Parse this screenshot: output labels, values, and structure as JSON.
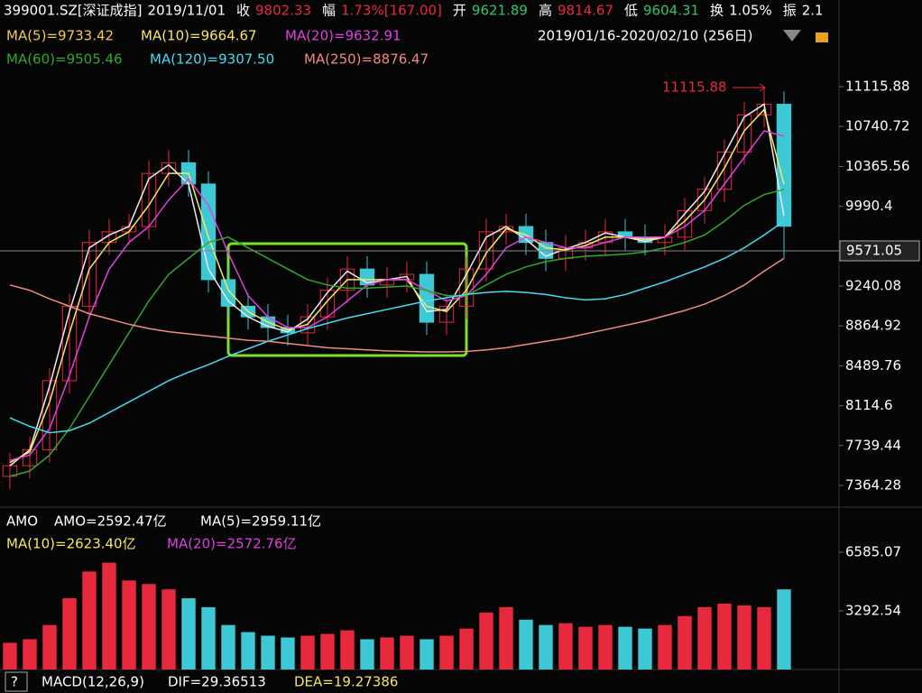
{
  "header": [
    {
      "label": "399001.SZ[深证成指]",
      "value": "2019/11/01"
    },
    {
      "label": "收",
      "value": "9802.33"
    },
    {
      "label": "幅",
      "value": "1.73%[167.00]"
    },
    {
      "label": "开",
      "value": "9621.89"
    },
    {
      "label": "高",
      "value": "9814.67"
    },
    {
      "label": "低",
      "value": "9604.31"
    },
    {
      "label": "换",
      "value": "1.05%"
    },
    {
      "label": "振",
      "value": "2.1"
    }
  ],
  "date_range": "2019/01/16-2020/02/10 (256日)",
  "macd": {
    "title": "MACD(12,26,9)",
    "dif": "DIF=29.36513",
    "dea": "DEA=19.27386",
    "help": "?"
  },
  "chart_data": [
    {
      "type": "candlestick",
      "open": [
        7450,
        7550,
        7700,
        8350,
        9050,
        9650,
        9750,
        9800,
        10300,
        10400,
        10200,
        9300,
        9050,
        8950,
        8850,
        8800,
        8950,
        9200,
        9400,
        9250,
        9300,
        9350,
        8900,
        9050,
        9400,
        9750,
        9800,
        9650,
        9500,
        9600,
        9650,
        9750,
        9700,
        9650,
        9700,
        9950,
        10150,
        10500,
        10850,
        10950
      ],
      "high": [
        7670,
        7820,
        8470,
        9170,
        9770,
        9870,
        9920,
        10420,
        10520,
        10520,
        10320,
        9420,
        9170,
        9070,
        8970,
        9070,
        9320,
        9520,
        9520,
        9420,
        9470,
        9470,
        9170,
        9520,
        9870,
        9920,
        9920,
        9770,
        9720,
        9770,
        9870,
        9870,
        9820,
        9820,
        10070,
        10270,
        10620,
        10970,
        11115.88,
        11070
      ],
      "low": [
        7330,
        7430,
        7580,
        8230,
        8930,
        9530,
        9630,
        9680,
        10180,
        10080,
        9180,
        8930,
        8830,
        8730,
        8680,
        8680,
        8830,
        9080,
        9130,
        9130,
        9180,
        8780,
        8780,
        8930,
        9280,
        9630,
        9530,
        9380,
        9380,
        9480,
        9530,
        9580,
        9530,
        9530,
        9580,
        9830,
        10030,
        10380,
        10730,
        9500
      ],
      "close": [
        7550,
        7700,
        8350,
        9050,
        9650,
        9750,
        9800,
        10300,
        10400,
        10200,
        9300,
        9050,
        8950,
        8850,
        8800,
        8950,
        9200,
        9400,
        9250,
        9300,
        9350,
        8900,
        9050,
        9400,
        9750,
        9800,
        9650,
        9500,
        9600,
        9650,
        9750,
        9700,
        9650,
        9700,
        9950,
        10150,
        10500,
        10850,
        10950,
        9802.33
      ],
      "up_color": "#e8283c",
      "down_color": "#3cc8d4",
      "series": [
        {
          "name": "MA(5)=9733.42",
          "color": "#f0e8e8",
          "legend_color": "#f2c94c",
          "values": [
            7550,
            7700,
            8300,
            9000,
            9600,
            9720,
            9800,
            10250,
            10380,
            10200,
            9400,
            9100,
            8950,
            8860,
            8810,
            8930,
            9180,
            9380,
            9270,
            9300,
            9330,
            9000,
            9020,
            9350,
            9700,
            9800,
            9680,
            9520,
            9590,
            9650,
            9740,
            9700,
            9660,
            9700,
            9920,
            10130,
            10480,
            10830,
            10950,
            9900
          ]
        },
        {
          "name": "MA(10)=9664.67",
          "color": "#f5e663",
          "legend_color": "#f5e663",
          "values": [
            7580,
            7680,
            8150,
            8800,
            9400,
            9650,
            9750,
            10000,
            10300,
            10300,
            9700,
            9200,
            9000,
            8900,
            8830,
            8880,
            9100,
            9300,
            9300,
            9300,
            9300,
            9050,
            9000,
            9200,
            9550,
            9780,
            9720,
            9600,
            9580,
            9620,
            9700,
            9700,
            9680,
            9700,
            9850,
            10050,
            10350,
            10700,
            10900,
            10200
          ]
        },
        {
          "name": "MA(20)=9632.91",
          "color": "#e040e0",
          "legend_color": "#e040e0",
          "values": [
            7600,
            7650,
            7900,
            8400,
            8950,
            9400,
            9650,
            9800,
            10050,
            10250,
            10000,
            9550,
            9150,
            8950,
            8850,
            8850,
            8950,
            9100,
            9250,
            9300,
            9300,
            9200,
            9100,
            9150,
            9350,
            9600,
            9700,
            9650,
            9600,
            9600,
            9650,
            9700,
            9700,
            9700,
            9800,
            9950,
            10200,
            10450,
            10700,
            10650
          ]
        },
        {
          "name": "MA(60)=9505.46",
          "color": "#2ea82e",
          "legend_color": "#2ea82e",
          "values": [
            7450,
            7500,
            7650,
            7900,
            8200,
            8500,
            8800,
            9100,
            9350,
            9500,
            9650,
            9700,
            9600,
            9500,
            9400,
            9300,
            9250,
            9220,
            9220,
            9230,
            9240,
            9200,
            9150,
            9150,
            9250,
            9350,
            9420,
            9470,
            9500,
            9520,
            9530,
            9540,
            9560,
            9600,
            9650,
            9720,
            9850,
            10000,
            10100,
            10150
          ]
        },
        {
          "name": "MA(120)=9307.50",
          "color": "#45dcf0",
          "legend_color": "#45dcf0",
          "values": [
            8000,
            7920,
            7860,
            7880,
            7950,
            8050,
            8150,
            8250,
            8350,
            8430,
            8500,
            8580,
            8650,
            8720,
            8780,
            8840,
            8890,
            8940,
            8980,
            9020,
            9060,
            9100,
            9130,
            9160,
            9180,
            9190,
            9180,
            9160,
            9130,
            9110,
            9120,
            9160,
            9220,
            9280,
            9350,
            9420,
            9500,
            9600,
            9720,
            9850
          ]
        },
        {
          "name": "MA(250)=8876.47",
          "color": "#f08a80",
          "legend_color": "#f08a80",
          "values": [
            9250,
            9200,
            9120,
            9050,
            8980,
            8930,
            8880,
            8840,
            8810,
            8790,
            8770,
            8750,
            8730,
            8720,
            8700,
            8680,
            8660,
            8650,
            8640,
            8630,
            8625,
            8620,
            8620,
            8625,
            8640,
            8660,
            8690,
            8720,
            8750,
            8790,
            8830,
            8870,
            8910,
            8960,
            9010,
            9070,
            9150,
            9250,
            9380,
            9500
          ]
        }
      ],
      "ylim": [
        7177.5,
        11676
      ],
      "yticks": [
        11115.88,
        10740.72,
        10365.56,
        9990.4,
        9240.08,
        8864.92,
        8489.76,
        8114.6,
        7739.44,
        7364.28
      ],
      "crosshair": {
        "value": 9571.05
      },
      "max_label": "11115.88"
    },
    {
      "type": "bar",
      "title": "AMO",
      "legend": [
        {
          "text": "AMO=2592.47亿",
          "color": "#ffffff"
        },
        {
          "text": "MA(5)=2959.11亿",
          "color": "#ffffff"
        },
        {
          "text": "MA(10)=2623.40亿",
          "color": "#f5e663"
        },
        {
          "text": "MA(20)=2572.76亿",
          "color": "#e040e0"
        }
      ],
      "values": [
        1500,
        1700,
        2500,
        4000,
        5500,
        6000,
        5000,
        4800,
        4500,
        4000,
        3500,
        2500,
        2100,
        1900,
        1800,
        1900,
        2000,
        2200,
        1700,
        1800,
        1900,
        1700,
        1900,
        2300,
        3200,
        3500,
        2800,
        2500,
        2600,
        2400,
        2500,
        2400,
        2300,
        2500,
        3000,
        3500,
        3700,
        3600,
        3500,
        4500
      ],
      "ylim": [
        0,
        8966
      ],
      "yticks": [
        6585.07,
        3292.54
      ]
    }
  ]
}
